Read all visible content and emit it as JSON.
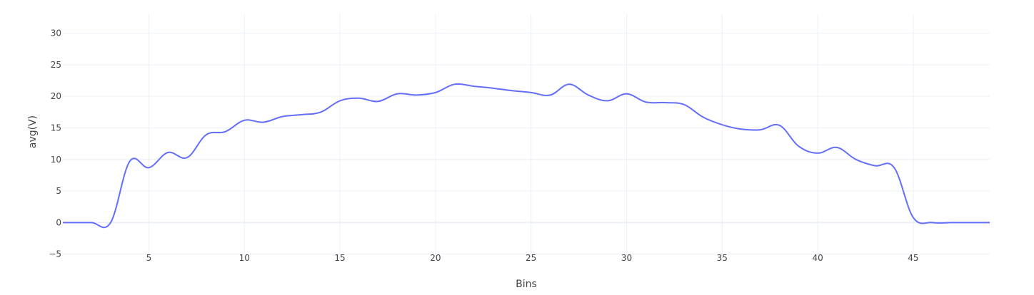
{
  "chart_data": {
    "type": "line",
    "xlabel": "Bins",
    "ylabel": "avg(V)",
    "xlim": [
      0.5,
      49
    ],
    "ylim": [
      -5.6,
      33
    ],
    "xticks": [
      5,
      10,
      15,
      20,
      25,
      30,
      35,
      40,
      45
    ],
    "yticks": [
      -5,
      0,
      5,
      10,
      15,
      20,
      25,
      30
    ],
    "ytick_labels": [
      "−5",
      "0",
      "5",
      "10",
      "15",
      "20",
      "25",
      "30"
    ],
    "grid": true,
    "colors": {
      "series": "#636efa",
      "grid": "#ebf0f8",
      "text": "#444444"
    },
    "series": [
      {
        "x": [
          0.5,
          1,
          2,
          3,
          4,
          5,
          6,
          7,
          8,
          9,
          10,
          11,
          12,
          13,
          14,
          15,
          16,
          17,
          18,
          19,
          20,
          21,
          22,
          23,
          24,
          25,
          26,
          27,
          28,
          29,
          30,
          31,
          32,
          33,
          34,
          35,
          36,
          37,
          38,
          39,
          40,
          41,
          42,
          43,
          44,
          45,
          46,
          47,
          48,
          49
        ],
        "y": [
          0,
          0,
          0,
          0,
          9.7,
          8.7,
          11.1,
          10.3,
          13.9,
          14.4,
          16.2,
          15.9,
          16.8,
          17.1,
          17.5,
          19.3,
          19.7,
          19.2,
          20.4,
          20.2,
          20.6,
          21.9,
          21.6,
          21.3,
          20.9,
          20.6,
          20.2,
          21.9,
          20.2,
          19.3,
          20.4,
          19.1,
          19.0,
          18.7,
          16.7,
          15.5,
          14.8,
          14.7,
          15.4,
          12.1,
          11.0,
          11.9,
          10.0,
          9.0,
          8.7,
          0.8,
          0,
          0,
          0,
          0
        ]
      }
    ]
  }
}
